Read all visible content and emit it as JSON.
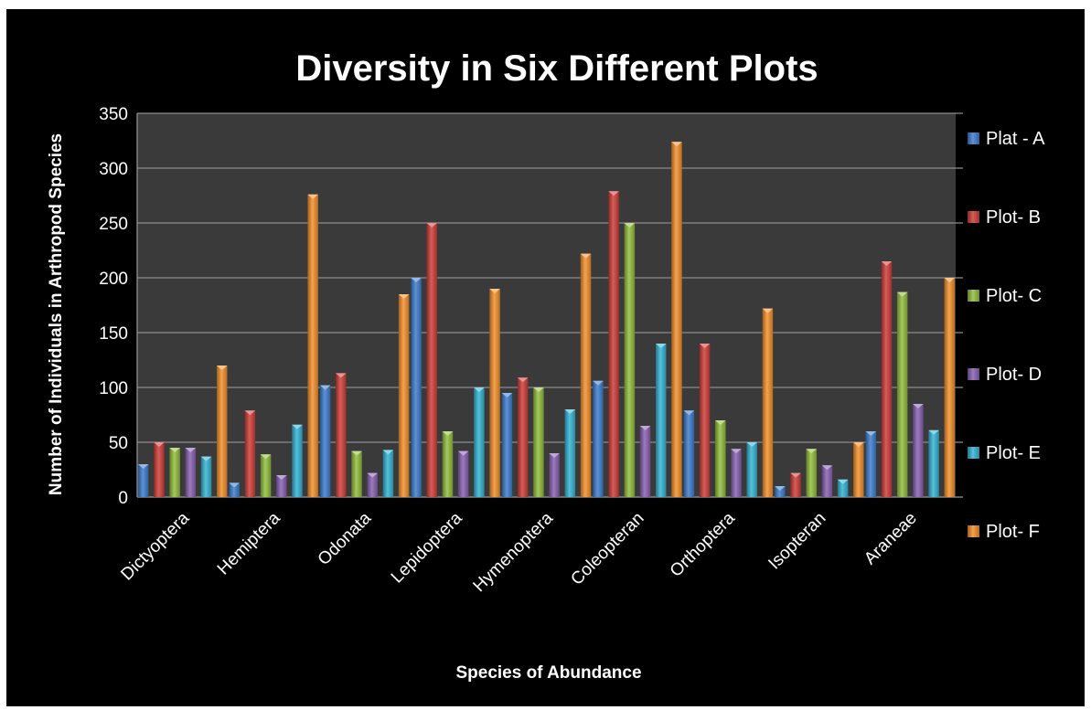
{
  "chart_data": {
    "type": "bar",
    "title": "Diversity in Six Different Plots",
    "xlabel": "Species of Abundance",
    "ylabel": "Number of Individuals in Arthropod Species",
    "ylim": [
      0,
      350
    ],
    "yticks": [
      0,
      50,
      100,
      150,
      200,
      250,
      300,
      350
    ],
    "grid": true,
    "legend_position": "right",
    "categories": [
      "Dictyoptera",
      "Hemiptera",
      "Odonata",
      "Lepidoptera",
      "Hymenoptera",
      "Coleopteran",
      "Orthoptera",
      "Isopteran",
      "Araneae"
    ],
    "series": [
      {
        "name": "Plat - A",
        "color": "#3f7fd0",
        "values": [
          30,
          13,
          102,
          200,
          95,
          106,
          79,
          10,
          60
        ]
      },
      {
        "name": "Plot- B",
        "color": "#d13f3a",
        "values": [
          50,
          79,
          113,
          250,
          109,
          279,
          140,
          22,
          215
        ]
      },
      {
        "name": "Plot- C",
        "color": "#94c03e",
        "values": [
          45,
          39,
          42,
          60,
          100,
          250,
          70,
          44,
          187
        ]
      },
      {
        "name": "Plot- D",
        "color": "#8a63b4",
        "values": [
          45,
          20,
          22,
          42,
          40,
          65,
          44,
          29,
          85
        ]
      },
      {
        "name": "Plot- E",
        "color": "#36b6d6",
        "values": [
          37,
          66,
          43,
          100,
          80,
          140,
          50,
          16,
          61
        ]
      },
      {
        "name": "Plot- F",
        "color": "#f5922d",
        "values": [
          120,
          276,
          185,
          190,
          222,
          324,
          172,
          50,
          200
        ]
      }
    ]
  }
}
